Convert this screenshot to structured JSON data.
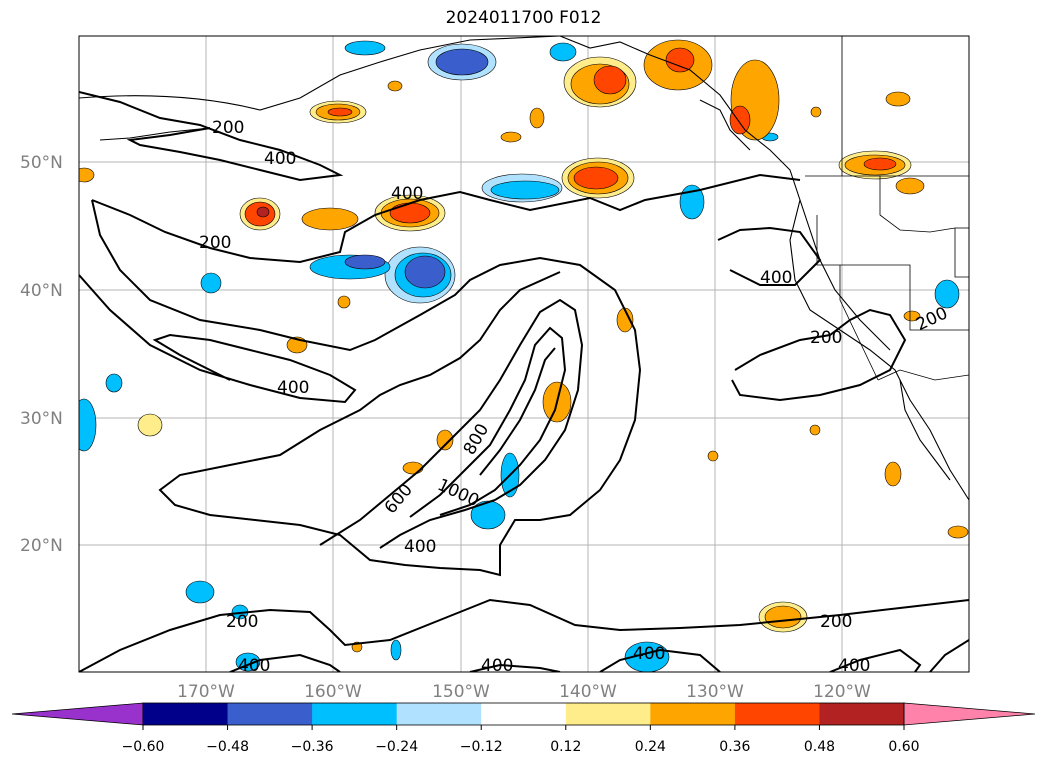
{
  "title": "2024011700 F012",
  "map": {
    "lat_labels": [
      "50°N",
      "40°N",
      "30°N",
      "20°N"
    ],
    "lon_labels": [
      "170°W",
      "160°W",
      "150°W",
      "140°W",
      "130°W",
      "120°W"
    ],
    "contour_labels": [
      "200",
      "400",
      "200",
      "400",
      "400",
      "800",
      "600",
      "1000",
      "400",
      "400",
      "200",
      "200",
      "200",
      "400",
      "400",
      "400",
      "400",
      "200"
    ]
  },
  "colorbar": {
    "ticks": [
      "−0.60",
      "−0.48",
      "−0.36",
      "−0.24",
      "−0.12",
      "0.12",
      "0.24",
      "0.36",
      "0.48",
      "0.60"
    ],
    "colors": [
      "#9932cc",
      "#00008b",
      "#3a5fcd",
      "#00bfff",
      "#b0e2ff",
      "#ffffff",
      "#ffec8b",
      "#ffa500",
      "#ff4500",
      "#b22222",
      "#ff82ab"
    ]
  }
}
